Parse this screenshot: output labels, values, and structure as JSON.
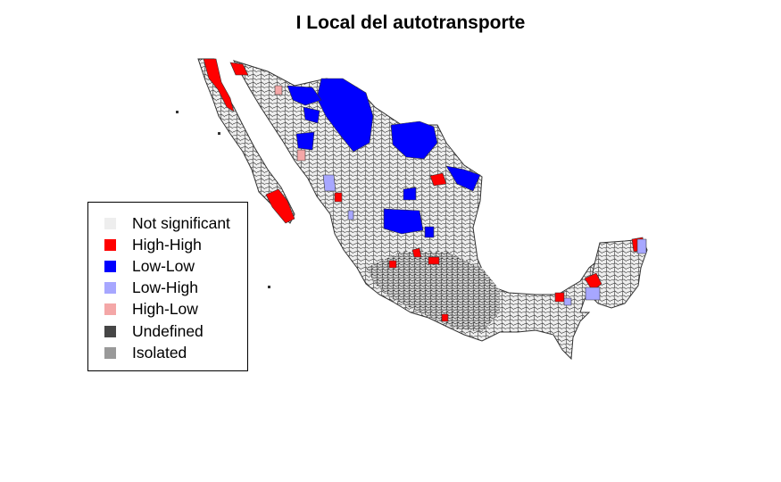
{
  "title": "I Local del autotransporte",
  "legend": {
    "items": [
      {
        "label": "Not significant",
        "color": "#eeeeee"
      },
      {
        "label": "High-High",
        "color": "#ff0000"
      },
      {
        "label": "Low-Low",
        "color": "#0000ff"
      },
      {
        "label": "Low-High",
        "color": "#a7a7ff"
      },
      {
        "label": "High-Low",
        "color": "#f4a7a7"
      },
      {
        "label": "Undefined",
        "color": "#464646"
      },
      {
        "label": "Isolated",
        "color": "#999999"
      }
    ]
  },
  "map": {
    "region": "Mexico municipalities",
    "border_color": "#333333",
    "base_color": "#eeeeee"
  }
}
